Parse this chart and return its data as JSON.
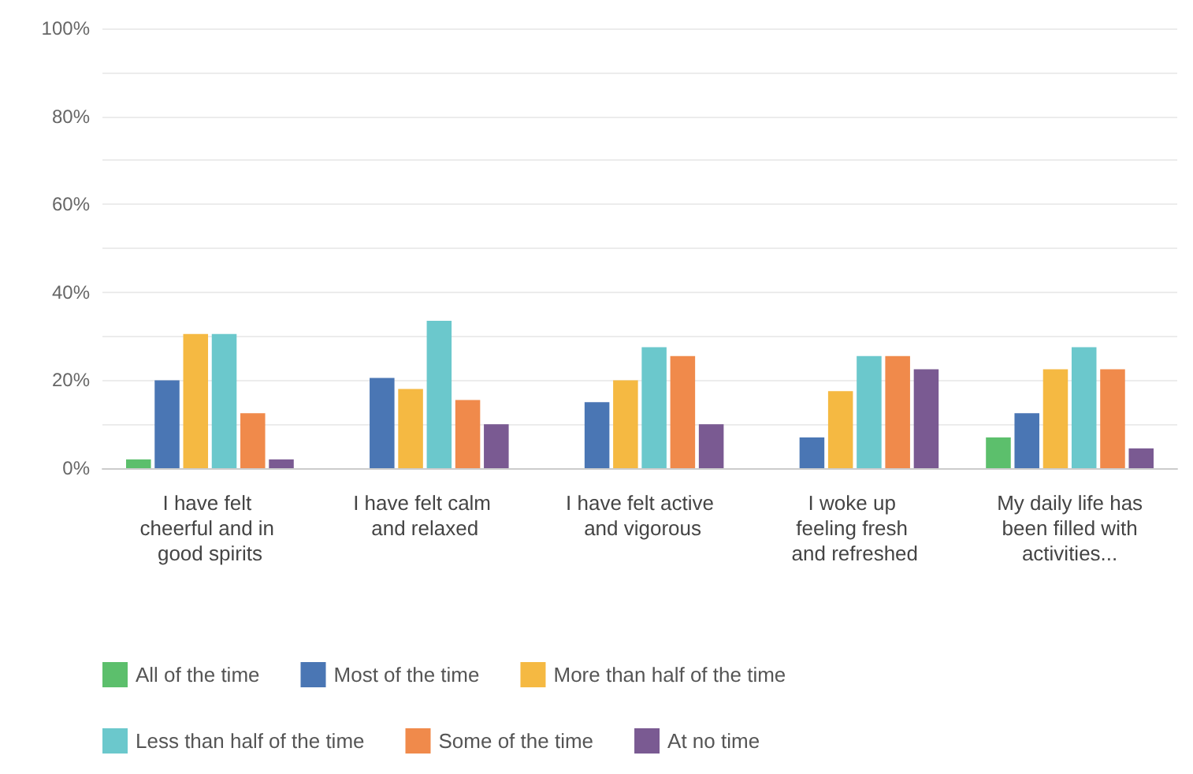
{
  "chart_data": {
    "type": "bar",
    "categories": [
      "I have felt cheerful and in good spirits",
      "I have felt calm and relaxed",
      "I have felt active and vigorous",
      "I woke up feeling fresh and refreshed",
      "My daily life has been filled with activities..."
    ],
    "series": [
      {
        "name": "All of the time",
        "color": "#5cbf6c",
        "values": [
          2,
          0,
          0,
          0,
          7
        ]
      },
      {
        "name": "Most of the time",
        "color": "#4a76b4",
        "values": [
          20,
          20.5,
          15,
          7,
          12.5
        ]
      },
      {
        "name": "More than half of the time",
        "color": "#f5b942",
        "values": [
          30.5,
          18,
          20,
          17.5,
          22.5
        ]
      },
      {
        "name": "Less than half of the time",
        "color": "#6bc8cc",
        "values": [
          30.5,
          33.5,
          27.5,
          25.5,
          27.5
        ]
      },
      {
        "name": "Some of the time",
        "color": "#f08a4b",
        "values": [
          12.5,
          15.5,
          25.5,
          25.5,
          22.5
        ]
      },
      {
        "name": "At no time",
        "color": "#7a5a92",
        "values": [
          2,
          10,
          10,
          22.5,
          4.5
        ]
      }
    ],
    "ylim": [
      0,
      100
    ],
    "yticks": [
      {
        "value": 0,
        "label": "0%"
      },
      {
        "value": 10,
        "label": null
      },
      {
        "value": 20,
        "label": "20%"
      },
      {
        "value": 30,
        "label": null
      },
      {
        "value": 40,
        "label": "40%"
      },
      {
        "value": 50,
        "label": null
      },
      {
        "value": 60,
        "label": "60%"
      },
      {
        "value": 70,
        "label": null
      },
      {
        "value": 80,
        "label": "80%"
      },
      {
        "value": 90,
        "label": null
      },
      {
        "value": 100,
        "label": "100%"
      }
    ],
    "grid": "y",
    "legend": "bottom"
  }
}
